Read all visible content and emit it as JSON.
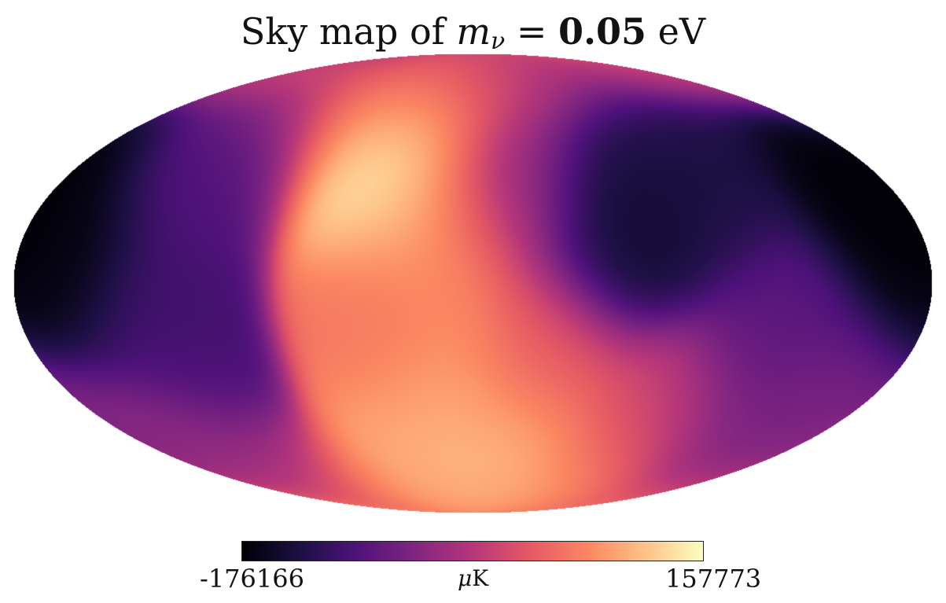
{
  "title": {
    "prefix": "Sky map of ",
    "symbol": "m",
    "subscript": "ν",
    "equals": " = ",
    "value": "0.05",
    "unit": " eV"
  },
  "colorbar": {
    "min_label": "-176166",
    "max_label": "157773",
    "unit_mu": "μ",
    "unit_rest": "K",
    "colormap": "magma",
    "stops": [
      "#000004",
      "#1c1044",
      "#4f127b",
      "#812581",
      "#b5367a",
      "#e55964",
      "#fb8761",
      "#fec287",
      "#fcfdbf"
    ]
  },
  "map": {
    "projection": "mollweide",
    "colormap": "magma",
    "features": [
      {
        "lon": -165,
        "lat": 5,
        "level": 0.02
      },
      {
        "lon": -125,
        "lat": -15,
        "level": 0.22
      },
      {
        "lon": -115,
        "lat": 40,
        "level": 0.25
      },
      {
        "lon": -35,
        "lat": 35,
        "level": 0.97
      },
      {
        "lon": -50,
        "lat": 65,
        "level": 0.85
      },
      {
        "lon": -10,
        "lat": 10,
        "level": 0.78
      },
      {
        "lon": -35,
        "lat": -10,
        "level": 0.7
      },
      {
        "lon": -15,
        "lat": -40,
        "level": 0.82
      },
      {
        "lon": 20,
        "lat": -60,
        "level": 0.9
      },
      {
        "lon": 30,
        "lat": -25,
        "level": 0.62
      },
      {
        "lon": 15,
        "lat": 30,
        "level": 0.4
      },
      {
        "lon": 60,
        "lat": 15,
        "level": 0.08
      },
      {
        "lon": 95,
        "lat": 35,
        "level": 0.12
      },
      {
        "lon": 170,
        "lat": 20,
        "level": 0.0
      },
      {
        "lon": 120,
        "lat": -15,
        "level": 0.28
      },
      {
        "lon": 80,
        "lat": -45,
        "level": 0.55
      },
      {
        "lon": 150,
        "lat": -45,
        "level": 0.35
      },
      {
        "lon": -150,
        "lat": -55,
        "level": 0.4
      },
      {
        "lon": 0,
        "lat": 80,
        "level": 0.45
      },
      {
        "lon": 0,
        "lat": -80,
        "level": 0.8
      }
    ]
  }
}
